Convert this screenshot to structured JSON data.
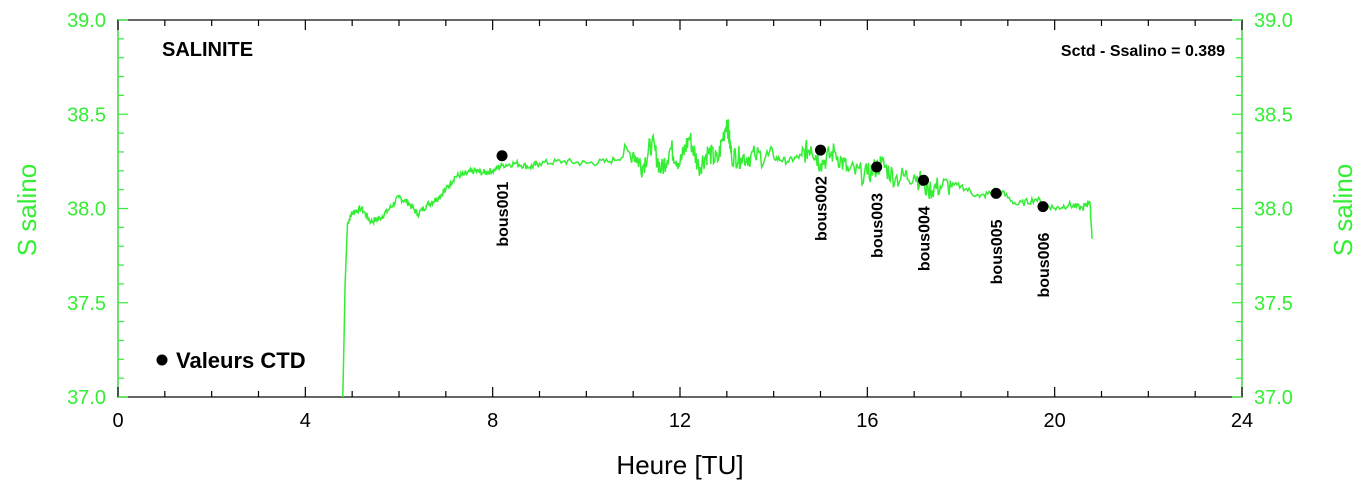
{
  "chart_data": {
    "type": "line",
    "title": "SALINITE",
    "annotation": "Sctd - Ssalino = 0.389",
    "xlabel": "Heure [TU]",
    "ylabel_left": "S salino",
    "ylabel_right": "S salino",
    "xlim": [
      0,
      24
    ],
    "ylim": [
      37.0,
      39.0
    ],
    "x_ticks": [
      "0",
      "4",
      "8",
      "12",
      "16",
      "20",
      "24"
    ],
    "y_ticks": [
      "37.0",
      "37.5",
      "38.0",
      "38.5",
      "39.0"
    ],
    "grid": false,
    "series": [
      {
        "kind": "line",
        "x": [
          4.8,
          4.85,
          4.9,
          5.0,
          5.2,
          5.4,
          5.6,
          5.8,
          6.0,
          6.2,
          6.4,
          6.6,
          6.8,
          7.0,
          7.2,
          7.4,
          7.6,
          7.8,
          8.0,
          8.2,
          8.5,
          8.8,
          9.0,
          9.5,
          10.0,
          10.5,
          11.0,
          11.2,
          11.4,
          11.6,
          11.8,
          12.0,
          12.2,
          12.4,
          12.6,
          12.8,
          13.0,
          13.1,
          13.3,
          13.6,
          14.0,
          14.3,
          14.6,
          14.8,
          15.0,
          15.3,
          15.6,
          16.0,
          16.3,
          16.6,
          17.0,
          17.3,
          17.6,
          18.0,
          18.4,
          18.8,
          19.2,
          19.6,
          20.0,
          20.3,
          20.6,
          20.75,
          20.8
        ],
        "y": [
          37.0,
          37.6,
          37.92,
          37.98,
          38.0,
          37.93,
          37.95,
          38.0,
          38.06,
          38.03,
          37.97,
          38.02,
          38.05,
          38.1,
          38.17,
          38.18,
          38.2,
          38.19,
          38.2,
          38.23,
          38.24,
          38.22,
          38.24,
          38.25,
          38.24,
          38.25,
          38.3,
          38.22,
          38.35,
          38.2,
          38.32,
          38.24,
          38.38,
          38.22,
          38.3,
          38.25,
          38.47,
          38.28,
          38.27,
          38.28,
          38.27,
          38.25,
          38.28,
          38.33,
          38.24,
          38.3,
          38.2,
          38.18,
          38.24,
          38.16,
          38.18,
          38.1,
          38.12,
          38.12,
          38.06,
          38.1,
          38.02,
          38.05,
          38.0,
          38.02,
          38.0,
          38.04,
          37.84
        ]
      },
      {
        "kind": "points",
        "name": "Valeurs CTD",
        "labels": [
          "bous001",
          "bous002",
          "bous003",
          "bous004",
          "bous005",
          "bous006"
        ],
        "x": [
          8.2,
          15.0,
          16.2,
          17.2,
          18.75,
          19.75
        ],
        "y": [
          38.28,
          38.31,
          38.22,
          38.15,
          38.08,
          38.01
        ]
      }
    ],
    "legend": {
      "position": "bottom-left",
      "label": "Valeurs CTD"
    },
    "colors": {
      "line": "#33ee33",
      "points": "#000000",
      "right_axis": "#33ee33",
      "left_axis": "#33ee33"
    }
  }
}
